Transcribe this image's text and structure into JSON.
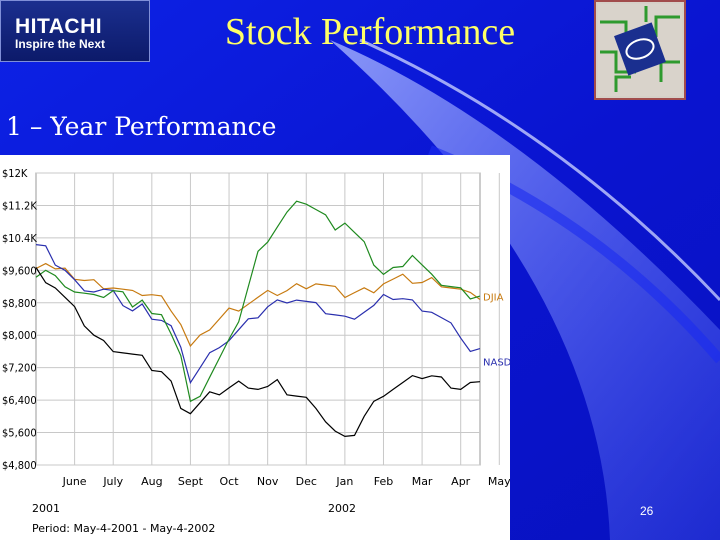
{
  "slide": {
    "title": "Stock Performance",
    "subtitle": "1 – Year Performance",
    "slide_number": "26"
  },
  "logo": {
    "brand": "HITACHI",
    "tagline": "Inspire the Next"
  },
  "colors": {
    "background": "#0a12d8",
    "title": "#ffff66",
    "text": "#ffffff",
    "djia": "#c77a10",
    "nasdaq": "#2a2fae",
    "green_series": "#1f8a1f",
    "black_series": "#000000"
  },
  "chart_data": {
    "type": "line",
    "title": "",
    "xlabel": "",
    "ylabel": "",
    "y_tick_labels": [
      "$12K",
      "$11.2K",
      "$10.4K",
      "$9,600",
      "$8,800",
      "$8,000",
      "$7,200",
      "$6,400",
      "$5,600",
      "$4,800"
    ],
    "ylim": [
      4800,
      12000
    ],
    "x_tick_labels": [
      "June",
      "July",
      "Aug",
      "Sept",
      "Oct",
      "Nov",
      "Dec",
      "Jan",
      "Feb",
      "Mar",
      "Apr",
      "May"
    ],
    "year_labels": [
      "2001",
      "2002"
    ],
    "period_note": "Period: May-4-2001 - May-4-2002",
    "grid": true,
    "x": [
      0,
      0.25,
      0.5,
      0.75,
      1,
      1.25,
      1.5,
      1.75,
      2,
      2.25,
      2.5,
      2.75,
      3,
      3.25,
      3.5,
      3.75,
      4,
      4.25,
      4.5,
      4.75,
      5,
      5.25,
      5.5,
      5.75,
      6,
      6.25,
      6.5,
      6.75,
      7,
      7.25,
      7.5,
      7.75,
      8,
      8.25,
      8.5,
      8.75,
      9,
      9.25,
      9.5,
      9.75,
      10,
      10.25,
      10.5,
      10.75,
      11,
      11.25,
      11.5
    ],
    "series": [
      {
        "name": "DJIA",
        "values": [
          9750,
          9800,
          9600,
          9550,
          9450,
          9350,
          9300,
          9250,
          9200,
          9100,
          9000,
          9050,
          9000,
          8900,
          8700,
          8300,
          7700,
          7900,
          8200,
          8400,
          8600,
          8700,
          8800,
          8900,
          9000,
          9050,
          9100,
          9200,
          9250,
          9300,
          9200,
          9100,
          9000,
          9050,
          9100,
          9150,
          9300,
          9350,
          9400,
          9350,
          9300,
          9350,
          9300,
          9200,
          9100,
          8950,
          8950
        ]
      },
      {
        "name": "NASDAQ",
        "values": [
          10200,
          10100,
          9800,
          9600,
          9300,
          9200,
          9100,
          9100,
          9000,
          8800,
          8600,
          8700,
          8500,
          8400,
          8200,
          7600,
          6900,
          7200,
          7500,
          7800,
          7900,
          8100,
          8300,
          8500,
          8700,
          8800,
          8900,
          8900,
          8800,
          8700,
          8600,
          8500,
          8400,
          8500,
          8600,
          8700,
          8900,
          8950,
          8900,
          8800,
          8700,
          8600,
          8400,
          8200,
          8000,
          7600,
          7600
        ]
      },
      {
        "name": "",
        "values": [
          9500,
          9600,
          9400,
          9300,
          9100,
          9000,
          8900,
          9000,
          9100,
          9000,
          8800,
          8900,
          8500,
          8400,
          8100,
          7500,
          6300,
          6600,
          7000,
          7400,
          7800,
          8400,
          9200,
          10000,
          10400,
          10700,
          11000,
          11200,
          11300,
          11100,
          10900,
          10700,
          10800,
          10500,
          10200,
          9800,
          9500,
          9600,
          9800,
          10000,
          9700,
          9400,
          9300,
          9200,
          9100,
          9000,
          9000
        ]
      },
      {
        "name": "",
        "values": [
          9600,
          9400,
          9200,
          8900,
          8600,
          8300,
          8000,
          7800,
          7700,
          7600,
          7500,
          7400,
          7200,
          7100,
          6800,
          6300,
          6100,
          6300,
          6500,
          6600,
          6700,
          6800,
          6800,
          6700,
          6700,
          6800,
          6600,
          6500,
          6400,
          6300,
          5900,
          5600,
          5400,
          5600,
          6000,
          6300,
          6600,
          6700,
          6800,
          6900,
          7000,
          7000,
          6900,
          6800,
          6700,
          6800,
          6750
        ]
      }
    ],
    "end_labels": [
      "DJIA",
      "NASDAQ"
    ]
  }
}
